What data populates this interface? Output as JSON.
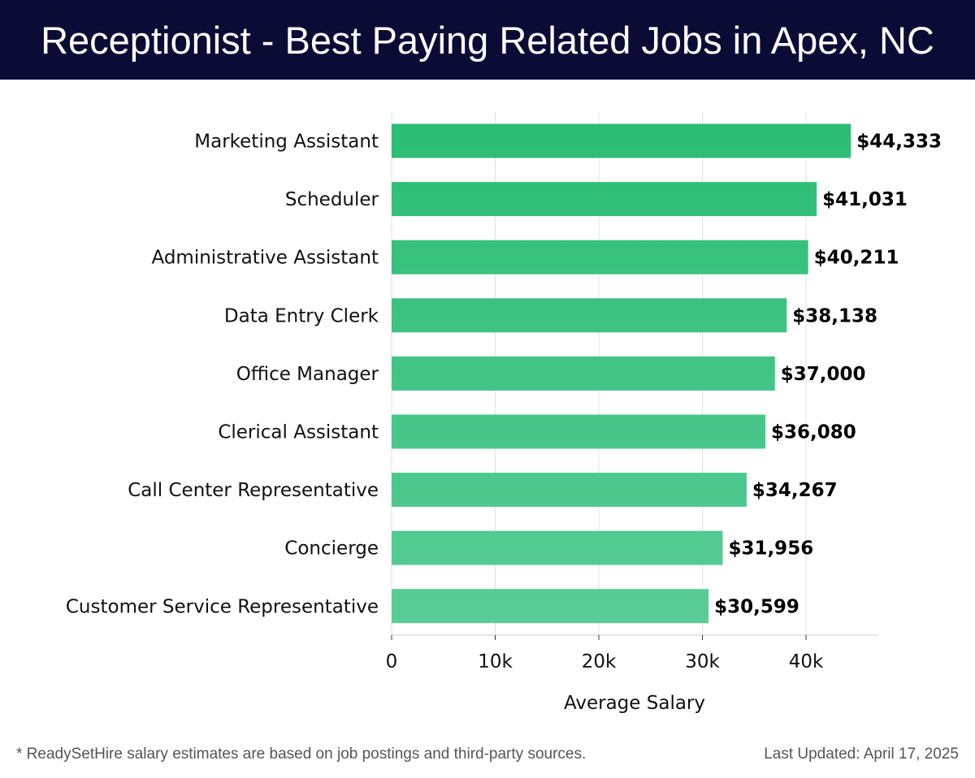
{
  "header": {
    "title": "Receptionist - Best Paying Related Jobs in Apex, NC"
  },
  "footer": {
    "note": "* ReadySetHire salary estimates are based on job postings and third-party sources.",
    "updated": "Last Updated: April 17, 2025"
  },
  "chart_data": {
    "type": "bar",
    "orientation": "horizontal",
    "title": "Receptionist - Best Paying Related Jobs in Apex, NC",
    "xlabel": "Average Salary",
    "ylabel": "",
    "xlim": [
      0,
      46800
    ],
    "grid": true,
    "categories": [
      "Marketing Assistant",
      "Scheduler",
      "Administrative Assistant",
      "Data Entry Clerk",
      "Office Manager",
      "Clerical Assistant",
      "Call Center Representative",
      "Concierge",
      "Customer Service Representative"
    ],
    "values": [
      44333,
      41031,
      40211,
      38138,
      37000,
      36080,
      34267,
      31956,
      30599
    ],
    "value_labels": [
      "$44,333",
      "$41,031",
      "$40,211",
      "$38,138",
      "$37,000",
      "$36,080",
      "$34,267",
      "$31,956",
      "$30,599"
    ],
    "ticks": [
      {
        "value": 0,
        "label": "0"
      },
      {
        "value": 10000,
        "label": "10k"
      },
      {
        "value": 20000,
        "label": "20k"
      },
      {
        "value": 30000,
        "label": "30k"
      },
      {
        "value": 40000,
        "label": "40k"
      }
    ],
    "colors": {
      "bar_start": "#2bbd74",
      "bar_end": "#5acc96",
      "grid": "#e2e2e2",
      "axis": "#cccccc",
      "header_bg": "#0b0c36"
    }
  }
}
